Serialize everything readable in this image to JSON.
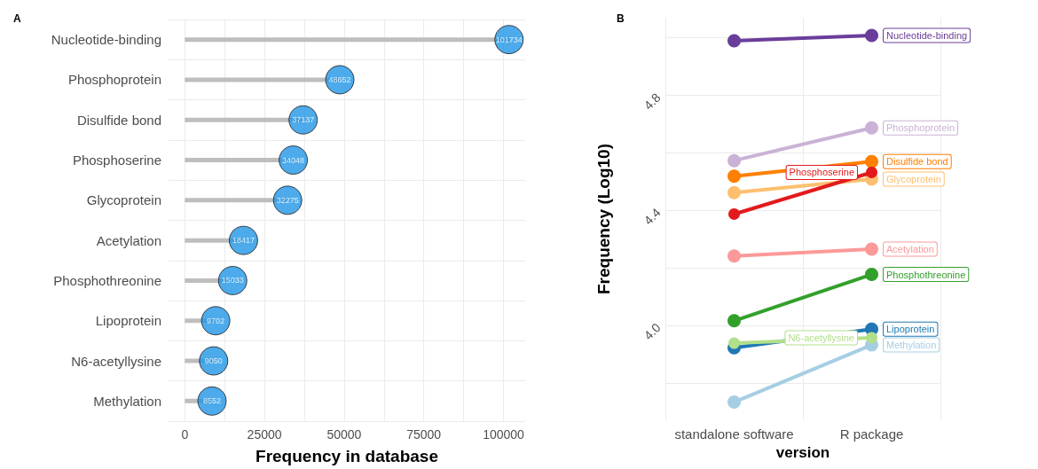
{
  "chart_data": [
    {
      "type": "lollipop",
      "title": "A",
      "orientation": "horizontal",
      "xlabel": "Frequency in database",
      "categories": [
        "Nucleotide-binding",
        "Phosphoprotein",
        "Disulfide bond",
        "Phosphoserine",
        "Glycoprotein",
        "Acetylation",
        "Phosphothreonine",
        "Lipoprotein",
        "N6-acetyllysine",
        "Methylation"
      ],
      "values": [
        101734,
        48652,
        37137,
        34048,
        32275,
        18417,
        15033,
        9702,
        9050,
        8552
      ],
      "color": "#2196e6",
      "data_labels": true,
      "xlim": [
        -5087,
        106821
      ],
      "xticks": [
        0,
        {
          "value": 12500,
          "label": null
        },
        25000,
        {
          "value": 37500,
          "label": null
        },
        50000,
        {
          "value": 62500,
          "label": null
        },
        75000,
        {
          "value": 87500,
          "label": null
        },
        100000
      ],
      "grid": true
    },
    {
      "type": "line",
      "title": "B",
      "xlabel": "version",
      "ylabel": "Frequency (Log10)",
      "categories": [
        "standalone software",
        "R package"
      ],
      "marker": "circle",
      "series": [
        {
          "name": "Nucleotide-binding",
          "color": "#6a3d9a",
          "values": [
            4.99,
            5.008
          ]
        },
        {
          "name": "Phosphoprotein",
          "color": "#cab2d6",
          "values": [
            4.573,
            4.687
          ]
        },
        {
          "name": "Disulfide bond",
          "color": "#ff7f00",
          "values": [
            4.519,
            4.57
          ]
        },
        {
          "name": "Phosphoserine",
          "color": "#e31a1c",
          "values": [
            4.387,
            4.532
          ]
        },
        {
          "name": "Glycoprotein",
          "color": "#fdbf6f",
          "values": [
            4.462,
            4.509
          ]
        },
        {
          "name": "Acetylation",
          "color": "#fb9a99",
          "values": [
            4.241,
            4.265
          ]
        },
        {
          "name": "Phosphothreonine",
          "color": "#33a02c",
          "values": [
            4.016,
            4.177
          ]
        },
        {
          "name": "Lipoprotein",
          "color": "#1f78b4",
          "values": [
            3.922,
            3.987
          ]
        },
        {
          "name": "N6-acetyllysine",
          "color": "#b2df8a",
          "values": [
            3.938,
            3.957
          ]
        },
        {
          "name": "Methylation",
          "color": "#a6cee3",
          "values": [
            3.733,
            3.932
          ]
        }
      ],
      "ylim": [
        3.67,
        5.07
      ],
      "yticks": [
        {
          "value": 3.8,
          "label": null
        },
        {
          "value": 4,
          "label": "4.0"
        },
        {
          "value": 4.2,
          "label": null
        },
        4.4,
        {
          "value": 4.6,
          "label": null
        },
        4.8,
        {
          "value": 5.0,
          "label": null
        }
      ],
      "grid": true
    }
  ]
}
